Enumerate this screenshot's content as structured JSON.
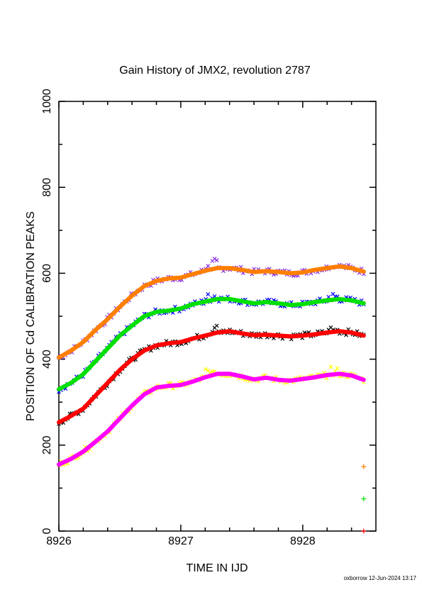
{
  "chart_data": {
    "type": "line",
    "title": "Gain History of JMX2, revolution 2787",
    "xlabel": "TIME IN IJD",
    "ylabel": "POSITION OF Cd CALIBRATION PEAKS",
    "xlim": [
      8926,
      8928.6
    ],
    "ylim": [
      0,
      1000
    ],
    "x_ticks": [
      "8926",
      "8927",
      "8928"
    ],
    "y_ticks": [
      "0",
      "200",
      "400",
      "600",
      "800",
      "1000"
    ],
    "grid": false,
    "x": [
      8926.0,
      8926.1,
      8926.2,
      8926.3,
      8926.4,
      8926.5,
      8926.6,
      8926.7,
      8926.8,
      8926.9,
      8927.0,
      8927.1,
      8927.2,
      8927.3,
      8927.4,
      8927.5,
      8927.6,
      8927.7,
      8927.8,
      8927.9,
      8928.0,
      8928.1,
      8928.2,
      8928.3,
      8928.4,
      8928.5
    ],
    "series": [
      {
        "color": "#ff7f00",
        "points_color": "#8a2be2",
        "values": [
          404,
          420,
          440,
          468,
          493,
          522,
          548,
          570,
          582,
          588,
          590,
          598,
          606,
          612,
          612,
          608,
          603,
          605,
          603,
          600,
          602,
          608,
          612,
          616,
          612,
          604
        ]
      },
      {
        "color": "#00e000",
        "points_color": "#0000ff",
        "values": [
          330,
          345,
          365,
          395,
          425,
          455,
          478,
          500,
          510,
          513,
          518,
          528,
          534,
          540,
          540,
          535,
          530,
          533,
          530,
          526,
          528,
          533,
          537,
          540,
          537,
          530
        ]
      },
      {
        "color": "#ff0000",
        "points_color": "#000000",
        "values": [
          253,
          268,
          285,
          315,
          345,
          375,
          400,
          420,
          432,
          437,
          440,
          448,
          455,
          462,
          465,
          460,
          456,
          457,
          455,
          453,
          455,
          458,
          462,
          465,
          462,
          455
        ]
      },
      {
        "color": "#ff00ff",
        "points_color": "#ffff00",
        "values": [
          155,
          168,
          185,
          208,
          232,
          262,
          292,
          318,
          334,
          338,
          340,
          348,
          358,
          366,
          366,
          360,
          353,
          357,
          352,
          350,
          354,
          358,
          363,
          366,
          362,
          352
        ]
      }
    ],
    "side_markers": [
      {
        "x": 8928.5,
        "y": 150,
        "color": "#ff7f00"
      },
      {
        "x": 8928.5,
        "y": 75,
        "color": "#00e000"
      },
      {
        "x": 8928.5,
        "y": 0,
        "color": "#ff0000"
      }
    ]
  },
  "footer": "oxborrow 12-Jun-2024 13:17"
}
